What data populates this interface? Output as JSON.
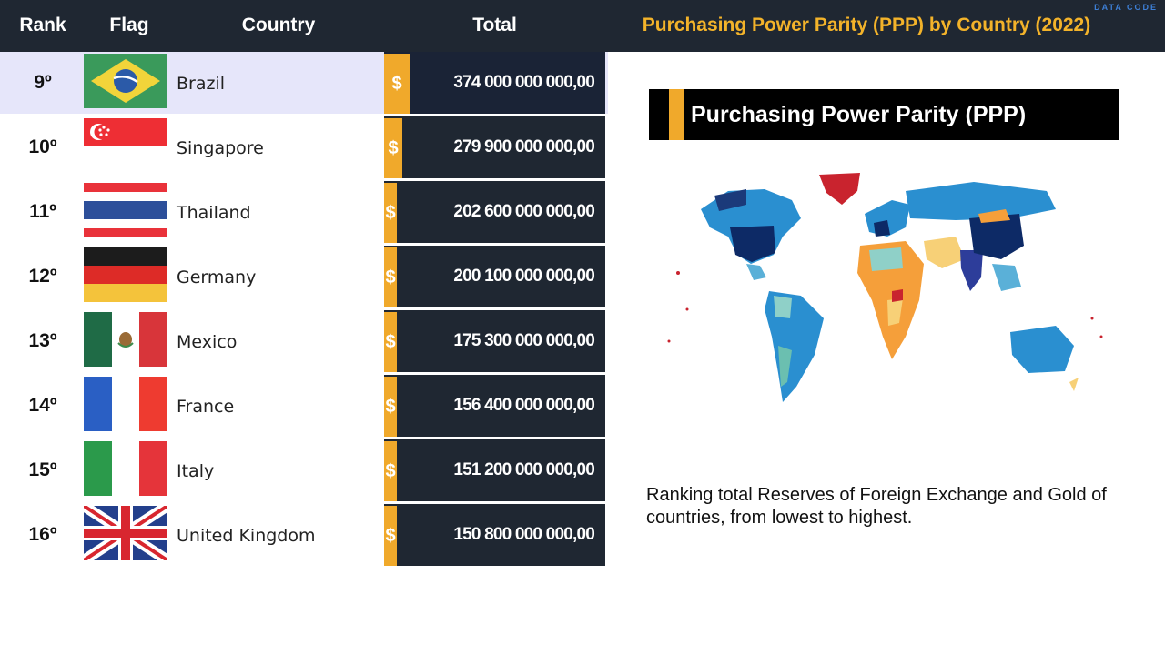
{
  "header": {
    "rank_label": "Rank",
    "flag_label": "Flag",
    "country_label": "Country",
    "total_label": "Total",
    "title": "Purchasing Power Parity (PPP) by Country (2022)",
    "brand": "DATA CODE"
  },
  "rows": [
    {
      "rank": "9º",
      "country": "Brazil",
      "currency": "$",
      "total": "374 000 000 000,00"
    },
    {
      "rank": "10º",
      "country": "Singapore",
      "currency": "$",
      "total": "279 900 000 000,00"
    },
    {
      "rank": "11º",
      "country": "Thailand",
      "currency": "$",
      "total": "202 600 000 000,00"
    },
    {
      "rank": "12º",
      "country": "Germany",
      "currency": "$",
      "total": "200 100 000 000,00"
    },
    {
      "rank": "13º",
      "country": "Mexico",
      "currency": "$",
      "total": "175 300 000 000,00"
    },
    {
      "rank": "14º",
      "country": "France",
      "currency": "$",
      "total": "156 400 000 000,00"
    },
    {
      "rank": "15º",
      "country": "Italy",
      "currency": "$",
      "total": "151 200 000 000,00"
    },
    {
      "rank": "16º",
      "country": "United Kingdom",
      "currency": "$",
      "total": "150 800 000 000,00"
    }
  ],
  "panel": {
    "banner_text": "Purchasing Power Parity (PPP)",
    "description": "Ranking total Reserves of Foreign Exchange and Gold of countries, from lowest to highest."
  },
  "colors": {
    "header_bg": "#1f2732",
    "accent": "#f0a92b",
    "title": "#f3b32a",
    "highlight_row": "#e6e6fa"
  }
}
